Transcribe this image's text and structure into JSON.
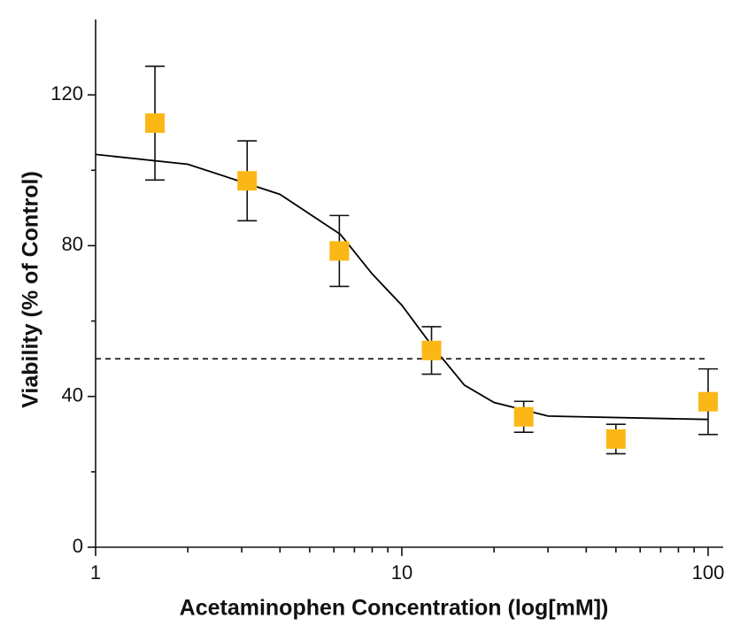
{
  "chart_data": {
    "type": "scatter",
    "x_label": "Acetaminophen Concentration (log[mM])",
    "y_label": "Viability (% of Control)",
    "xscale": "log",
    "xlim": [
      1,
      112
    ],
    "ylim": [
      0,
      140
    ],
    "xticks": [
      1,
      10,
      100
    ],
    "yticks": [
      0,
      40,
      80,
      120
    ],
    "yminorticks": [
      20,
      60,
      100
    ],
    "x": [
      1.5625,
      3.125,
      6.25,
      12.5,
      25,
      50,
      100
    ],
    "values": [
      112.5,
      97.2,
      78.6,
      52.2,
      34.6,
      28.7,
      38.6
    ],
    "errors": [
      15.1,
      10.6,
      9.4,
      6.3,
      4.1,
      3.9,
      8.7
    ],
    "color": "#fbb715",
    "fit": {
      "x": [
        1,
        2,
        4,
        6.3,
        8,
        10,
        12.5,
        16,
        20,
        30,
        100
      ],
      "values": [
        104.2,
        101.6,
        93.6,
        83,
        72.5,
        64.2,
        53.6,
        43,
        38.4,
        34.8,
        33.9
      ],
      "color": "#000000"
    },
    "reference_line": {
      "y": 50,
      "x": [
        1,
        100
      ]
    }
  }
}
